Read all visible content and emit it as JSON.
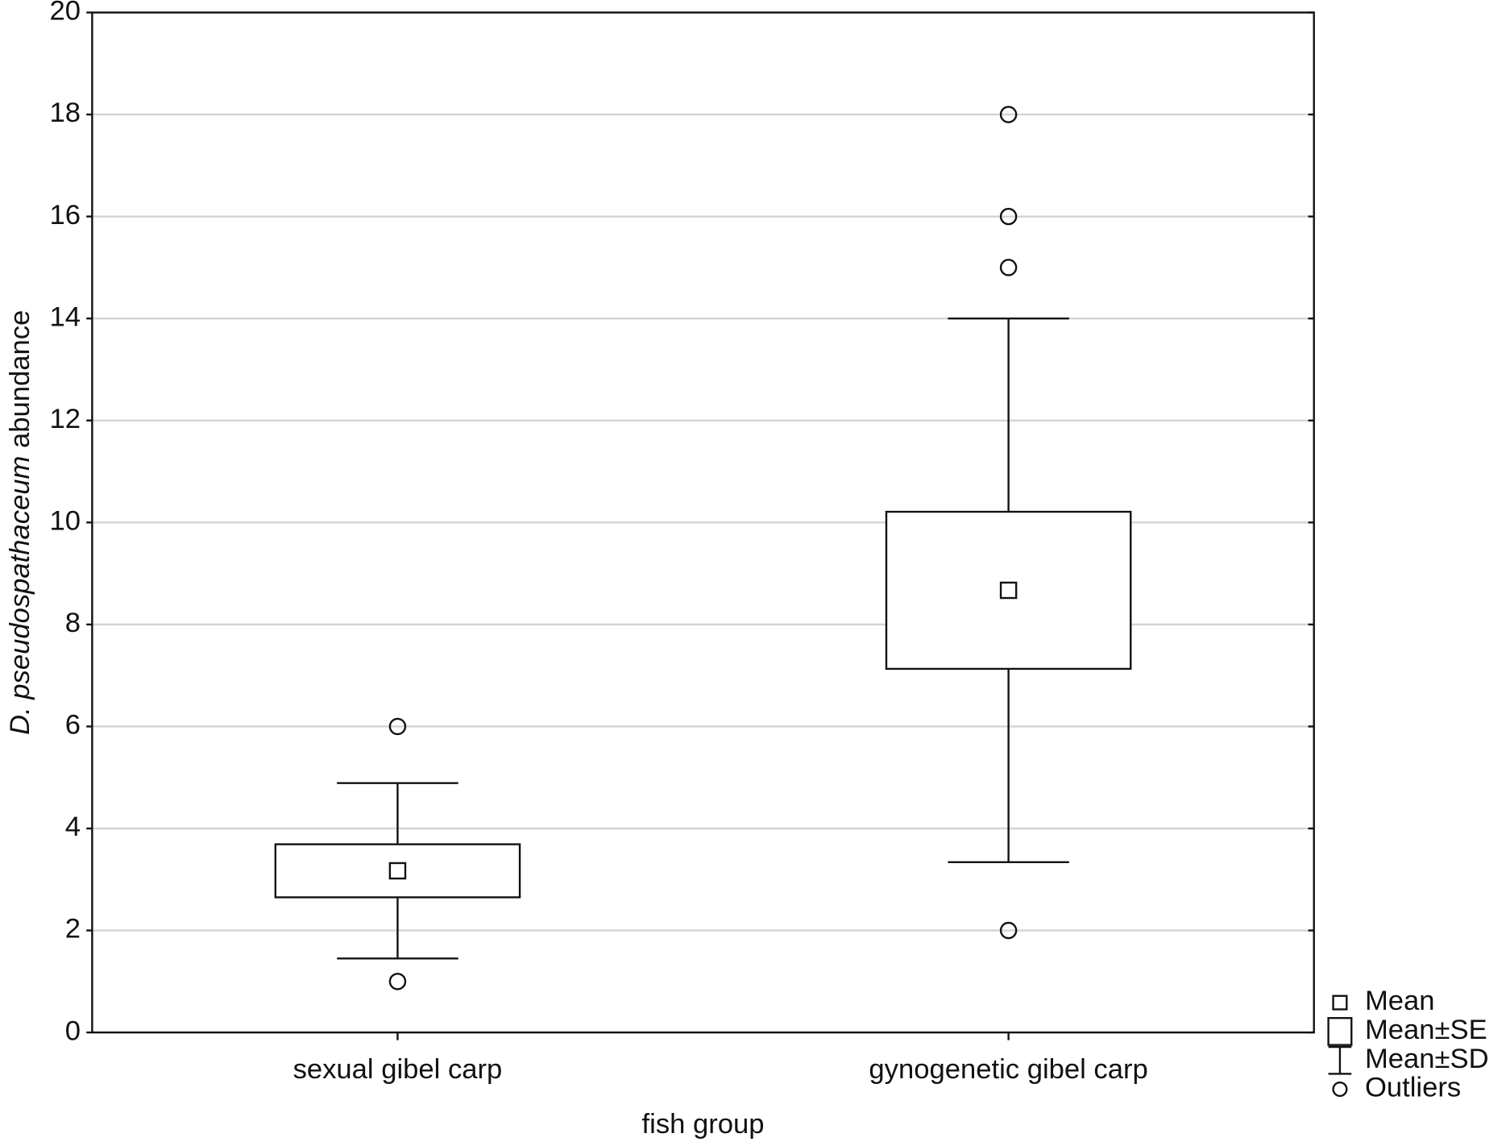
{
  "chart_data": {
    "type": "box",
    "x_label": "fish group",
    "y_label": {
      "italic": "D. pseudospathaceum",
      "text": " abundance"
    },
    "categories": [
      "sexual gibel carp",
      "gynogenetic gibel carp"
    ],
    "mean": [
      3.17,
      8.67
    ],
    "se": [
      0.52,
      1.54
    ],
    "sd": [
      1.72,
      5.33
    ],
    "outliers": [
      [
        1,
        6
      ],
      [
        2,
        15,
        16,
        18
      ]
    ],
    "ylim": [
      0,
      20
    ],
    "yticks": [
      0,
      2,
      4,
      6,
      8,
      10,
      12,
      14,
      16,
      18,
      20
    ],
    "grid": true,
    "legend": [
      "Mean",
      "Mean±SE",
      "Mean±SD",
      "Outliers"
    ],
    "legend_position": "lower right"
  }
}
